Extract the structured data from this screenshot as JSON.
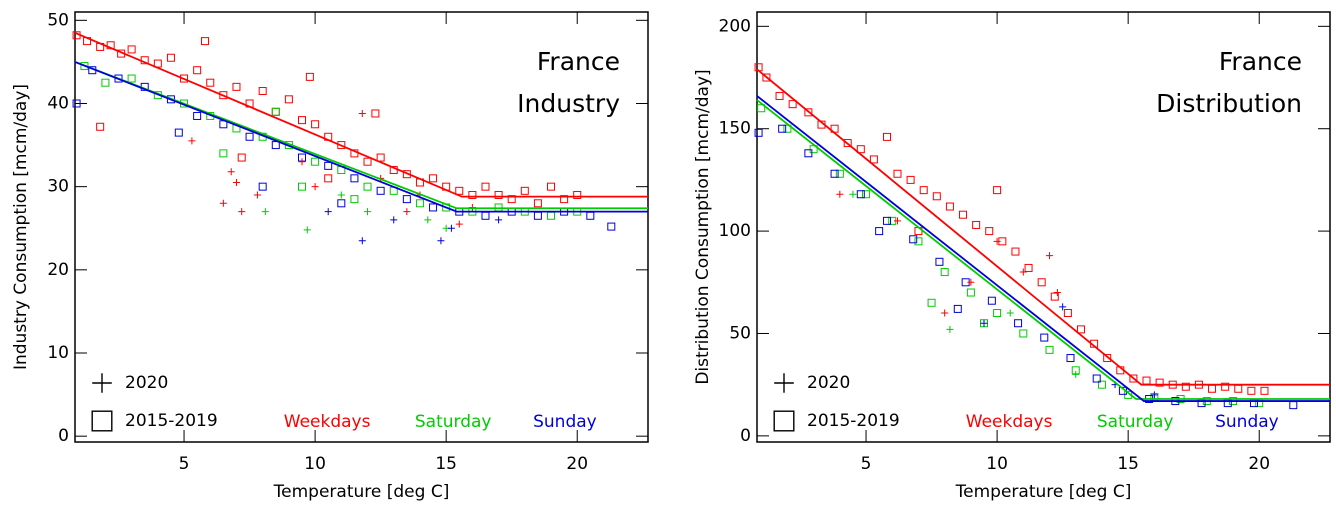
{
  "chart_data": [
    {
      "type": "scatter",
      "annotation": [
        "France",
        "Industry"
      ],
      "x_label": "Temperature [deg C]",
      "y_label": "Industry Consumption [mcm/day]",
      "xlim": [
        0.84,
        22.7
      ],
      "ylim": [
        -0.7,
        51
      ],
      "xticks": [
        5,
        10,
        15,
        20
      ],
      "yticks": [
        0,
        10,
        20,
        30,
        40,
        50
      ],
      "marker_legend": [
        {
          "marker": "plus",
          "label": "2020"
        },
        {
          "marker": "square",
          "label": "2015-2019"
        }
      ],
      "series": [
        {
          "name": "Weekdays",
          "color": "#ff0000",
          "marker": "square",
          "x": [
            0.9,
            1.3,
            1.8,
            2.2,
            2.6,
            3.0,
            3.5,
            4.0,
            4.5,
            5.0,
            5.5,
            6.0,
            6.5,
            7.0,
            7.5,
            8.0,
            8.5,
            9.0,
            9.5,
            10.0,
            10.5,
            11.0,
            11.5,
            12.0,
            12.5,
            13.0,
            13.5,
            14.0,
            14.5,
            15.0,
            15.5,
            16.0,
            16.5,
            17.0,
            17.5,
            18.0,
            18.5,
            19.0,
            19.5,
            20.0,
            1.8,
            5.8,
            9.8,
            12.3,
            7.2,
            10.5
          ],
          "values": [
            48.2,
            47.5,
            46.8,
            47,
            46,
            46.5,
            45.2,
            44.8,
            45.5,
            43,
            44,
            42.5,
            41,
            42,
            40,
            41.5,
            39,
            40.5,
            38,
            37.5,
            36,
            35,
            34,
            33,
            33.5,
            32,
            31.5,
            30.5,
            31,
            30,
            29.5,
            29,
            30,
            29,
            28.5,
            29.5,
            28,
            30,
            28.5,
            29,
            37.2,
            47.5,
            43.2,
            38.8,
            33.5,
            31
          ]
        },
        {
          "name": "Saturday",
          "color": "#00cc00",
          "marker": "square",
          "x": [
            1.2,
            2,
            3,
            4,
            5,
            6,
            7,
            8,
            8.5,
            9,
            10,
            11,
            12,
            13,
            14,
            15,
            16,
            17,
            18,
            19,
            20,
            6.5,
            9.5,
            11.5
          ],
          "values": [
            44.5,
            42.5,
            43,
            41,
            40,
            38.5,
            37,
            36,
            39,
            35,
            33,
            32,
            30,
            29.5,
            28,
            27.5,
            27,
            27.5,
            27,
            26.5,
            27,
            34,
            30,
            28.5
          ]
        },
        {
          "name": "Sunday",
          "color": "#0000dd",
          "marker": "square",
          "x": [
            0.9,
            1.5,
            2.5,
            3.5,
            4.5,
            5.5,
            6.5,
            7.5,
            8.5,
            9.5,
            10.5,
            11.5,
            12.5,
            13.5,
            14.5,
            15.5,
            16.5,
            17.5,
            18.5,
            19.5,
            20.5,
            21.3,
            4.8,
            8,
            11
          ],
          "values": [
            40,
            44,
            43,
            42,
            40.5,
            38.5,
            37.5,
            36,
            35,
            33.5,
            32.5,
            31,
            29.5,
            28.5,
            27.5,
            27,
            26.5,
            27,
            26.5,
            27,
            26.5,
            25.2,
            36.5,
            30,
            28
          ]
        },
        {
          "name": "Weekdays",
          "color": "#ff0000",
          "marker": "plus",
          "x": [
            6.8,
            7,
            6.5,
            7.8,
            7.2,
            9.5,
            10,
            11.8,
            12.5,
            14,
            13.5,
            5.3,
            16,
            15.5
          ],
          "values": [
            31.8,
            30.5,
            28,
            29,
            27,
            33,
            30,
            38.8,
            31,
            29,
            27,
            35.5,
            27.5,
            25.5
          ]
        },
        {
          "name": "Saturday",
          "color": "#00cc00",
          "marker": "plus",
          "x": [
            9.7,
            8.1,
            12,
            15,
            14.3,
            11
          ],
          "values": [
            24.8,
            27,
            27,
            25,
            26,
            29
          ]
        },
        {
          "name": "Sunday",
          "color": "#0000dd",
          "marker": "plus",
          "x": [
            11.8,
            14.8,
            15.2,
            13,
            10.5,
            17
          ],
          "values": [
            23.5,
            23.5,
            25,
            26,
            27,
            26
          ]
        },
        {
          "name": "Weekdays",
          "color": "#ff0000",
          "marker": "line",
          "x": [
            0.84,
            15.6,
            22.7
          ],
          "values": [
            48.5,
            28.8,
            28.8
          ]
        },
        {
          "name": "Saturday",
          "color": "#00cc00",
          "marker": "line",
          "x": [
            0.84,
            15.4,
            22.7
          ],
          "values": [
            45,
            27.4,
            27.4
          ]
        },
        {
          "name": "Sunday",
          "color": "#0000dd",
          "marker": "line",
          "x": [
            0.84,
            15.4,
            22.7
          ],
          "values": [
            45,
            27,
            27
          ]
        }
      ]
    },
    {
      "type": "scatter",
      "annotation": [
        "France",
        "Distribution"
      ],
      "x_label": "Temperature [deg C]",
      "y_label": "Distribution Consumption [mcm/day]",
      "xlim": [
        0.84,
        22.7
      ],
      "ylim": [
        -3,
        207
      ],
      "xticks": [
        5,
        10,
        15,
        20
      ],
      "yticks": [
        0,
        50,
        100,
        150,
        200
      ],
      "marker_legend": [
        {
          "marker": "plus",
          "label": "2020"
        },
        {
          "marker": "square",
          "label": "2015-2019"
        }
      ],
      "series": [
        {
          "name": "Weekdays",
          "color": "#ff0000",
          "marker": "square",
          "x": [
            0.9,
            1.2,
            1.7,
            2.2,
            2.8,
            3.3,
            3.8,
            4.3,
            4.8,
            5.3,
            5.8,
            6.2,
            6.7,
            7.2,
            7.7,
            8.2,
            8.7,
            9.2,
            9.7,
            10.2,
            10.7,
            11.2,
            11.7,
            12.2,
            12.7,
            13.2,
            13.7,
            14.2,
            14.7,
            15.2,
            15.7,
            16.2,
            16.7,
            17.2,
            17.7,
            18.2,
            18.7,
            19.2,
            19.7,
            20.2,
            10,
            7
          ],
          "values": [
            180,
            175,
            166,
            162,
            158,
            152,
            150,
            143,
            140,
            135,
            146,
            128,
            125,
            120,
            117,
            112,
            108,
            103,
            100,
            95,
            90,
            82,
            75,
            68,
            60,
            52,
            45,
            38,
            32,
            28,
            27,
            26,
            25,
            24,
            25,
            23,
            24,
            23,
            22,
            22,
            120,
            100
          ]
        },
        {
          "name": "Saturday",
          "color": "#00cc00",
          "marker": "square",
          "x": [
            1,
            2,
            3,
            4,
            5,
            6,
            7,
            8,
            9,
            10,
            11,
            12,
            13,
            14,
            15,
            16,
            17,
            18,
            19,
            20,
            7.5,
            9.5
          ],
          "values": [
            160,
            150,
            140,
            128,
            118,
            105,
            95,
            80,
            70,
            60,
            50,
            42,
            32,
            25,
            20,
            19,
            18,
            17,
            17,
            16,
            65,
            55
          ]
        },
        {
          "name": "Sunday",
          "color": "#0000dd",
          "marker": "square",
          "x": [
            0.9,
            1.8,
            2.8,
            3.8,
            4.8,
            5.8,
            6.8,
            7.8,
            8.8,
            9.8,
            10.8,
            11.8,
            12.8,
            13.8,
            14.8,
            15.8,
            16.8,
            17.8,
            18.8,
            19.8,
            21.3,
            5.5,
            8.5
          ],
          "values": [
            148,
            150,
            138,
            128,
            118,
            105,
            96,
            85,
            75,
            66,
            55,
            48,
            38,
            28,
            22,
            18,
            17,
            16,
            16,
            16,
            15,
            100,
            62
          ]
        },
        {
          "name": "Weekdays",
          "color": "#ff0000",
          "marker": "plus",
          "x": [
            4,
            6.2,
            8,
            10,
            11,
            12,
            9,
            12.3
          ],
          "values": [
            118,
            105,
            60,
            95,
            80,
            88,
            75,
            70
          ]
        },
        {
          "name": "Saturday",
          "color": "#00cc00",
          "marker": "plus",
          "x": [
            4.5,
            8.2,
            10.5,
            13
          ],
          "values": [
            118,
            52,
            60,
            30
          ]
        },
        {
          "name": "Sunday",
          "color": "#0000dd",
          "marker": "plus",
          "x": [
            12.5,
            9.5,
            14.5,
            16
          ],
          "values": [
            63,
            55,
            25,
            20
          ]
        },
        {
          "name": "Weekdays",
          "color": "#ff0000",
          "marker": "line",
          "x": [
            0.84,
            15.5,
            22.7
          ],
          "values": [
            179,
            25,
            25
          ]
        },
        {
          "name": "Saturday",
          "color": "#00cc00",
          "marker": "line",
          "x": [
            0.84,
            15.3,
            22.7
          ],
          "values": [
            164,
            18,
            18
          ]
        },
        {
          "name": "Sunday",
          "color": "#0000dd",
          "marker": "line",
          "x": [
            0.84,
            15.6,
            22.7
          ],
          "values": [
            166,
            17,
            17
          ]
        }
      ]
    }
  ]
}
